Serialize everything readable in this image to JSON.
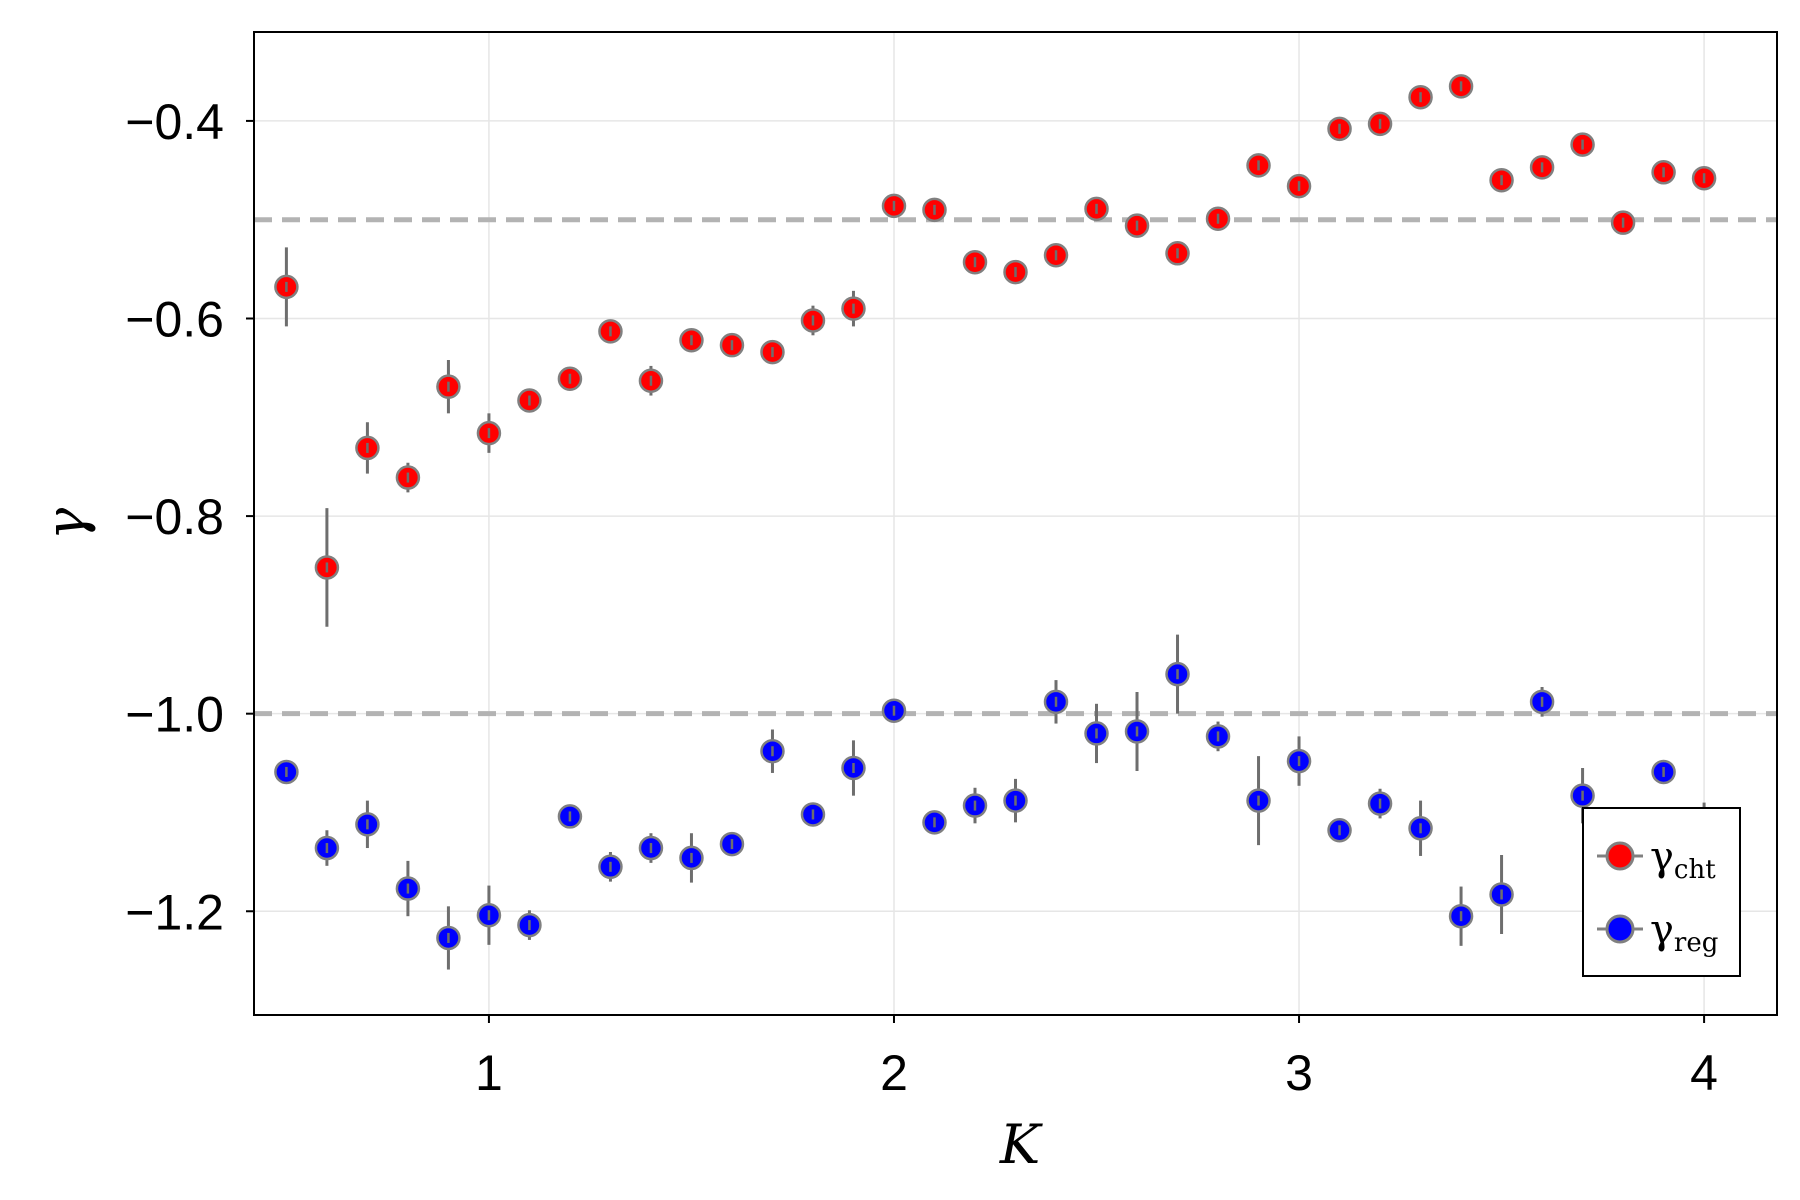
{
  "chart_data": {
    "type": "scatter",
    "xlabel": "K",
    "ylabel": "γ",
    "xlim": [
      0.42,
      4.18
    ],
    "ylim": [
      -1.305,
      -0.31
    ],
    "x_ticks": [
      1,
      2,
      3,
      4
    ],
    "x_tick_labels": [
      "1",
      "2",
      "3",
      "4"
    ],
    "y_ticks": [
      -1.2,
      -1.0,
      -0.8,
      -0.6,
      -0.4
    ],
    "y_tick_labels": [
      "−1.2",
      "−1.0",
      "−0.8",
      "−0.6",
      "−0.4"
    ],
    "grid": true,
    "legend_position": "bottom-right",
    "reference_lines": [
      -0.5,
      -1.0
    ],
    "colors": {
      "cht": "#ff0000",
      "reg": "#0000ff",
      "marker_edge": "#808080",
      "errorbar": "#6e6e6e",
      "reference_line": "#b3b3b3",
      "grid": "#e6e6e6"
    },
    "series": [
      {
        "name": "cht",
        "legend_symbol": "γ",
        "legend_subscript": "cht",
        "points": [
          {
            "x": 0.5,
            "y": -0.568,
            "err": 0.04
          },
          {
            "x": 0.6,
            "y": -0.852,
            "err": 0.06
          },
          {
            "x": 0.7,
            "y": -0.731,
            "err": 0.026
          },
          {
            "x": 0.8,
            "y": -0.761,
            "err": 0.015
          },
          {
            "x": 0.9,
            "y": -0.669,
            "err": 0.027
          },
          {
            "x": 1.0,
            "y": -0.716,
            "err": 0.02
          },
          {
            "x": 1.1,
            "y": -0.683,
            "err": 0.008
          },
          {
            "x": 1.2,
            "y": -0.661,
            "err": 0.008
          },
          {
            "x": 1.3,
            "y": -0.613,
            "err": 0.01
          },
          {
            "x": 1.4,
            "y": -0.663,
            "err": 0.015
          },
          {
            "x": 1.5,
            "y": -0.622,
            "err": 0.008
          },
          {
            "x": 1.6,
            "y": -0.627,
            "err": 0.008
          },
          {
            "x": 1.7,
            "y": -0.634,
            "err": 0.01
          },
          {
            "x": 1.8,
            "y": -0.602,
            "err": 0.015
          },
          {
            "x": 1.9,
            "y": -0.59,
            "err": 0.018
          },
          {
            "x": 2.0,
            "y": -0.486,
            "err": 0.008
          },
          {
            "x": 2.1,
            "y": -0.49,
            "err": 0.008
          },
          {
            "x": 2.2,
            "y": -0.543,
            "err": 0.008
          },
          {
            "x": 2.3,
            "y": -0.553,
            "err": 0.008
          },
          {
            "x": 2.4,
            "y": -0.536,
            "err": 0.008
          },
          {
            "x": 2.5,
            "y": -0.489,
            "err": 0.008
          },
          {
            "x": 2.6,
            "y": -0.506,
            "err": 0.008
          },
          {
            "x": 2.7,
            "y": -0.534,
            "err": 0.008
          },
          {
            "x": 2.8,
            "y": -0.499,
            "err": 0.008
          },
          {
            "x": 2.9,
            "y": -0.445,
            "err": 0.008
          },
          {
            "x": 3.0,
            "y": -0.466,
            "err": 0.008
          },
          {
            "x": 3.1,
            "y": -0.408,
            "err": 0.008
          },
          {
            "x": 3.2,
            "y": -0.403,
            "err": 0.008
          },
          {
            "x": 3.3,
            "y": -0.376,
            "err": 0.008
          },
          {
            "x": 3.4,
            "y": -0.365,
            "err": 0.008
          },
          {
            "x": 3.5,
            "y": -0.46,
            "err": 0.008
          },
          {
            "x": 3.6,
            "y": -0.447,
            "err": 0.008
          },
          {
            "x": 3.7,
            "y": -0.424,
            "err": 0.008
          },
          {
            "x": 3.8,
            "y": -0.503,
            "err": 0.012
          },
          {
            "x": 3.9,
            "y": -0.452,
            "err": 0.008
          },
          {
            "x": 4.0,
            "y": -0.458,
            "err": 0.008
          }
        ]
      },
      {
        "name": "reg",
        "legend_symbol": "γ",
        "legend_subscript": "reg",
        "points": [
          {
            "x": 0.5,
            "y": -1.059,
            "err": 0.008
          },
          {
            "x": 0.6,
            "y": -1.136,
            "err": 0.018
          },
          {
            "x": 0.7,
            "y": -1.112,
            "err": 0.024
          },
          {
            "x": 0.8,
            "y": -1.177,
            "err": 0.028
          },
          {
            "x": 0.9,
            "y": -1.227,
            "err": 0.032
          },
          {
            "x": 1.0,
            "y": -1.204,
            "err": 0.03
          },
          {
            "x": 1.1,
            "y": -1.214,
            "err": 0.015
          },
          {
            "x": 1.2,
            "y": -1.104,
            "err": 0.008
          },
          {
            "x": 1.3,
            "y": -1.155,
            "err": 0.015
          },
          {
            "x": 1.4,
            "y": -1.136,
            "err": 0.015
          },
          {
            "x": 1.5,
            "y": -1.146,
            "err": 0.025
          },
          {
            "x": 1.6,
            "y": -1.132,
            "err": 0.008
          },
          {
            "x": 1.7,
            "y": -1.038,
            "err": 0.022
          },
          {
            "x": 1.8,
            "y": -1.102,
            "err": 0.012
          },
          {
            "x": 1.9,
            "y": -1.055,
            "err": 0.028
          },
          {
            "x": 2.0,
            "y": -0.997,
            "err": 0.008
          },
          {
            "x": 2.1,
            "y": -1.11,
            "err": 0.008
          },
          {
            "x": 2.2,
            "y": -1.093,
            "err": 0.018
          },
          {
            "x": 2.3,
            "y": -1.088,
            "err": 0.022
          },
          {
            "x": 2.4,
            "y": -0.988,
            "err": 0.022
          },
          {
            "x": 2.5,
            "y": -1.02,
            "err": 0.03
          },
          {
            "x": 2.6,
            "y": -1.018,
            "err": 0.04
          },
          {
            "x": 2.7,
            "y": -0.96,
            "err": 0.04
          },
          {
            "x": 2.8,
            "y": -1.023,
            "err": 0.015
          },
          {
            "x": 2.9,
            "y": -1.088,
            "err": 0.045
          },
          {
            "x": 3.0,
            "y": -1.048,
            "err": 0.025
          },
          {
            "x": 3.1,
            "y": -1.118,
            "err": 0.008
          },
          {
            "x": 3.2,
            "y": -1.091,
            "err": 0.015
          },
          {
            "x": 3.3,
            "y": -1.116,
            "err": 0.028
          },
          {
            "x": 3.4,
            "y": -1.205,
            "err": 0.03
          },
          {
            "x": 3.5,
            "y": -1.183,
            "err": 0.04
          },
          {
            "x": 3.6,
            "y": -0.988,
            "err": 0.015
          },
          {
            "x": 3.7,
            "y": -1.083,
            "err": 0.028
          },
          {
            "x": 3.8,
            "y": -1.153,
            "err": 0.02
          },
          {
            "x": 3.9,
            "y": -1.059,
            "err": 0.012
          },
          {
            "x": 4.0,
            "y": -1.115,
            "err": 0.025
          }
        ]
      }
    ]
  }
}
